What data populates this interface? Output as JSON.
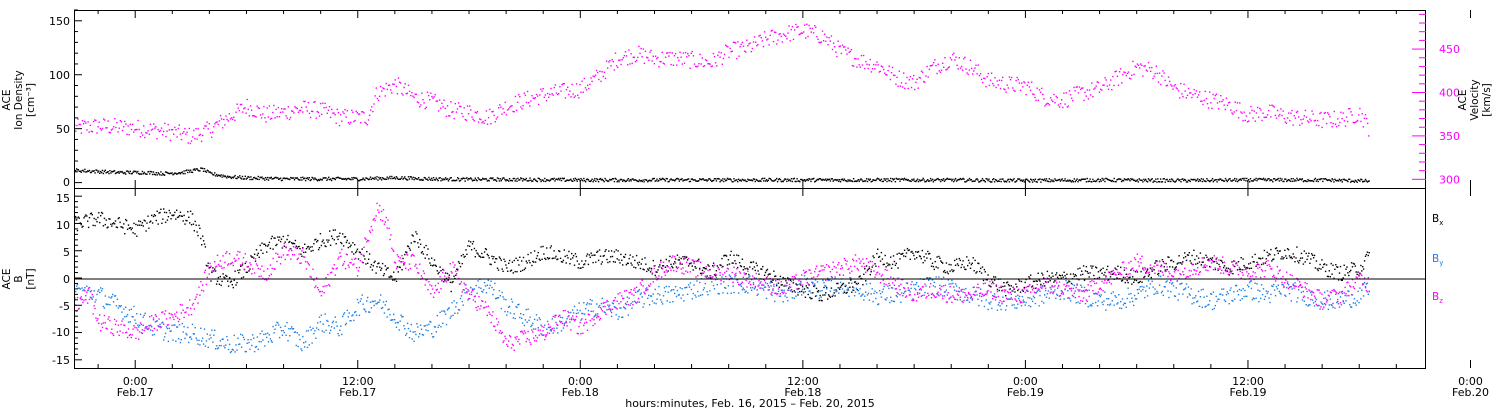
{
  "xaxis": {
    "title": "hours:minutes, Feb. 16, 2015 – Feb. 20, 2015",
    "range_hours": [
      -3.3,
      69.6
    ],
    "ticks": [
      {
        "h": 0,
        "time": "0:00",
        "date": "Feb.17"
      },
      {
        "h": 12,
        "time": "12:00",
        "date": "Feb.17"
      },
      {
        "h": 24,
        "time": "0:00",
        "date": "Feb.18"
      },
      {
        "h": 36,
        "time": "12:00",
        "date": "Feb.18"
      },
      {
        "h": 48,
        "time": "0:00",
        "date": "Feb.19"
      },
      {
        "h": 60,
        "time": "12:00",
        "date": "Feb.19"
      },
      {
        "h": 72,
        "time": "0:00",
        "date": "Feb.20"
      }
    ]
  },
  "chart_data": [
    {
      "type": "scatter",
      "ylabel_left": [
        "ACE",
        "Ion Density",
        "[cm⁻³]"
      ],
      "ylabel_right": [
        "ACE",
        "Velocity",
        "[km/s]"
      ],
      "ylim_left": [
        -5,
        160
      ],
      "ylim_right": [
        290,
        495
      ],
      "left_ticks": [
        "0",
        "50",
        "100",
        "150"
      ],
      "right_ticks": [
        "300",
        "350",
        "400",
        "450"
      ],
      "series": [
        {
          "color": "#000000",
          "axis": "left",
          "x": [
            -3.3,
            -1,
            0.5,
            1.5,
            2.5,
            3.2,
            3.6,
            4,
            5,
            6,
            8,
            10,
            12,
            14,
            16,
            18,
            20,
            24,
            28,
            32,
            36,
            40,
            44,
            48,
            52,
            56,
            60,
            64,
            66.5
          ],
          "y": [
            12,
            10,
            10,
            9,
            10,
            12,
            13,
            9,
            6,
            5,
            4,
            4,
            4,
            5,
            4,
            3.5,
            3.5,
            3,
            3,
            3,
            3,
            3,
            3,
            2.5,
            3,
            2.5,
            3,
            3,
            2
          ]
        },
        {
          "color": "#ff00ff",
          "axis": "right",
          "x": [
            -3.3,
            -2,
            0,
            2,
            3,
            4,
            5,
            6,
            7,
            8,
            9,
            10,
            11,
            12,
            12.5,
            13,
            14,
            15,
            16,
            17,
            18,
            19,
            20,
            21,
            22,
            24,
            25,
            26,
            27,
            28,
            29,
            30,
            31,
            32,
            33,
            34,
            35,
            36,
            37,
            38,
            39,
            40,
            41,
            42,
            43,
            44,
            45,
            46,
            47,
            48,
            49,
            50,
            51,
            52,
            53,
            54,
            55,
            56,
            57,
            58,
            59,
            60,
            61,
            62,
            63,
            64,
            65,
            66,
            66.5
          ],
          "y": [
            360,
            362,
            360,
            355,
            350,
            358,
            372,
            385,
            375,
            378,
            382,
            380,
            372,
            372,
            372,
            400,
            410,
            395,
            390,
            380,
            378,
            372,
            385,
            392,
            398,
            405,
            420,
            440,
            445,
            440,
            440,
            438,
            435,
            448,
            452,
            462,
            468,
            472,
            466,
            448,
            438,
            432,
            418,
            412,
            430,
            440,
            430,
            414,
            410,
            408,
            395,
            392,
            400,
            405,
            418,
            430,
            425,
            405,
            398,
            392,
            386,
            375,
            378,
            373,
            371,
            369,
            370,
            377,
            360
          ]
        }
      ]
    },
    {
      "type": "scatter",
      "ylabel_left": [
        "ACE",
        "B",
        "[nT]"
      ],
      "ylim": [
        -16.5,
        16.5
      ],
      "ticks": [
        "-15",
        "-10",
        "-5",
        "0",
        "5",
        "10",
        "15"
      ],
      "zero_line": true,
      "series": [
        {
          "name": "B",
          "sub": "x",
          "color": "#000000",
          "x": [
            -3.3,
            -2,
            -1,
            0,
            1,
            2,
            3,
            3.5,
            4,
            5,
            6,
            7,
            8,
            9,
            10,
            11,
            12,
            13,
            14,
            15,
            16,
            17,
            18,
            19,
            20,
            21,
            22,
            23,
            24,
            25,
            26,
            27,
            28,
            29,
            30,
            31,
            32,
            33,
            34,
            35,
            36,
            37,
            38,
            39,
            40,
            41,
            42,
            43,
            44,
            45,
            46,
            47,
            48,
            49,
            50,
            51,
            52,
            53,
            54,
            55,
            56,
            57,
            58,
            59,
            60,
            61,
            62,
            63,
            64,
            65,
            66,
            66.5
          ],
          "y": [
            10,
            11,
            10,
            9,
            11,
            12,
            11,
            8,
            1,
            -1,
            2,
            6,
            7,
            5,
            7,
            8,
            5,
            2,
            0,
            8,
            3,
            -1,
            6,
            4,
            2,
            3,
            5,
            4,
            3,
            4,
            4,
            3,
            2,
            3,
            3,
            1,
            4,
            2,
            1,
            -1,
            -2,
            -3,
            -2,
            -1,
            4,
            3,
            5,
            3,
            2,
            3,
            0,
            -2,
            -1,
            0,
            0,
            1,
            1,
            1,
            0,
            2,
            3,
            4,
            3,
            2,
            3,
            4,
            5,
            4,
            2,
            1,
            2,
            4
          ]
        },
        {
          "name": "B",
          "sub": "y",
          "color": "#1f7fe0",
          "x": [
            -3.3,
            -2,
            -1,
            0,
            1,
            2,
            3,
            4,
            5,
            6,
            7,
            8,
            9,
            10,
            11,
            12,
            13,
            14,
            15,
            16,
            17,
            18,
            19,
            20,
            21,
            22,
            23,
            24,
            25,
            26,
            27,
            28,
            29,
            30,
            31,
            32,
            33,
            34,
            35,
            36,
            37,
            38,
            39,
            40,
            41,
            42,
            43,
            44,
            45,
            46,
            47,
            48,
            49,
            50,
            51,
            52,
            53,
            54,
            55,
            56,
            57,
            58,
            59,
            60,
            61,
            62,
            63,
            64,
            65,
            66,
            66.5
          ],
          "y": [
            -2,
            -3,
            -5,
            -7,
            -9,
            -10,
            -10,
            -11,
            -12,
            -12,
            -11,
            -9,
            -12,
            -8,
            -9,
            -5,
            -4,
            -7,
            -10,
            -9,
            -6,
            -2,
            -1,
            -5,
            -7,
            -9,
            -8,
            -6,
            -5,
            -6,
            -4,
            -3,
            -3,
            -2,
            -1,
            -1,
            -1,
            -2,
            -3,
            -1,
            -2,
            -1,
            -2,
            -3,
            -3,
            -2,
            -1,
            -2,
            -3,
            -4,
            -4,
            -4,
            -3,
            -2,
            -3,
            -4,
            -4,
            -3,
            -1,
            -2,
            -3,
            -4,
            -3,
            -2,
            -3,
            -2,
            -3,
            -4,
            -4,
            -3,
            -2
          ]
        },
        {
          "name": "B",
          "sub": "z",
          "color": "#ff00ff",
          "x": [
            -3.3,
            -2.5,
            -2,
            -1,
            0,
            1,
            2,
            3,
            3.5,
            4,
            5,
            6,
            7,
            8,
            9,
            10,
            11,
            12,
            12.5,
            13,
            13.5,
            14,
            15,
            16,
            17,
            18,
            19,
            20,
            21,
            22,
            23,
            24,
            25,
            26,
            27,
            28,
            29,
            30,
            31,
            32,
            33,
            34,
            35,
            36,
            37,
            38,
            39,
            40,
            41,
            42,
            43,
            44,
            45,
            46,
            47,
            48,
            49,
            50,
            51,
            52,
            53,
            54,
            55,
            56,
            57,
            58,
            59,
            60,
            61,
            62,
            63,
            64,
            65,
            66,
            66.5
          ],
          "y": [
            -5,
            -3,
            -8,
            -9,
            -10,
            -8,
            -7,
            -5,
            -2,
            2,
            4,
            3,
            1,
            5,
            4,
            -3,
            4,
            2,
            8,
            13,
            11,
            3,
            3,
            -3,
            2,
            -3,
            -6,
            -12,
            -11,
            -10,
            -7,
            -9,
            -6,
            -4,
            -3,
            1,
            3,
            2,
            1,
            1,
            0,
            -1,
            -2,
            0,
            1,
            2,
            3,
            1,
            -1,
            -3,
            -2,
            -3,
            -3,
            -2,
            -3,
            -3,
            -1,
            -2,
            -3,
            -1,
            1,
            3,
            2,
            1,
            2,
            3,
            2,
            1,
            2,
            0,
            -2,
            -4,
            -3,
            0,
            -1
          ]
        }
      ]
    }
  ]
}
